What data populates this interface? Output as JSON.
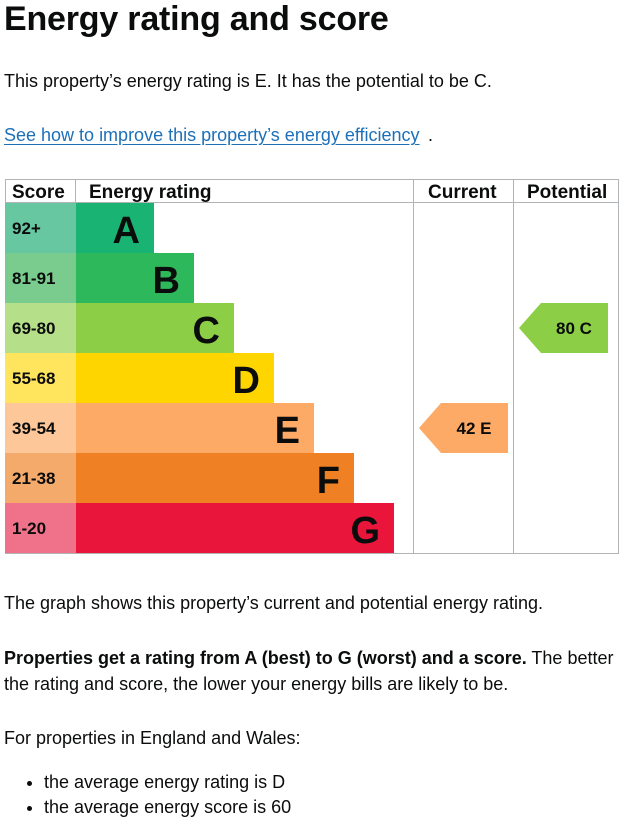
{
  "page": {
    "title": "Energy rating and score",
    "intro": "This property’s energy rating is E. It has the potential to be C.",
    "improve_link": "See how to improve this property’s energy efficiency",
    "improve_link_suffix": ".",
    "graph_caption": "The graph shows this property’s current and potential energy rating.",
    "ratings_bold": "Properties get a rating from A (best) to G (worst) and a score.",
    "ratings_rest": " The better the rating and score, the lower your energy bills are likely to be.",
    "regional_intro": "For properties in England and Wales:",
    "averages": [
      "the average energy rating is D",
      "the average energy score is 60"
    ]
  },
  "chart_data": {
    "type": "bar",
    "headers": {
      "score": "Score",
      "rating": "Energy rating",
      "current": "Current",
      "potential": "Potential"
    },
    "bands": [
      {
        "score": "92+",
        "letter": "A",
        "color": "#19b473",
        "score_color": "#66c7a0"
      },
      {
        "score": "81-91",
        "letter": "B",
        "color": "#2eb85c",
        "score_color": "#7acb8e"
      },
      {
        "score": "69-80",
        "letter": "C",
        "color": "#8cce46",
        "score_color": "#b6df8a"
      },
      {
        "score": "55-68",
        "letter": "D",
        "color": "#ffd500",
        "score_color": "#ffe45e"
      },
      {
        "score": "39-54",
        "letter": "E",
        "color": "#fcaa65",
        "score_color": "#fdc79a"
      },
      {
        "score": "21-38",
        "letter": "F",
        "color": "#ef8023",
        "score_color": "#f4aa6b"
      },
      {
        "score": "1-20",
        "letter": "G",
        "color": "#e9153b",
        "score_color": "#f0718a"
      }
    ],
    "current": {
      "score": 42,
      "letter": "E",
      "label": "42 E",
      "color": "#fcaa65"
    },
    "potential": {
      "score": 80,
      "letter": "C",
      "label": "80 C",
      "color": "#8cce46"
    }
  }
}
